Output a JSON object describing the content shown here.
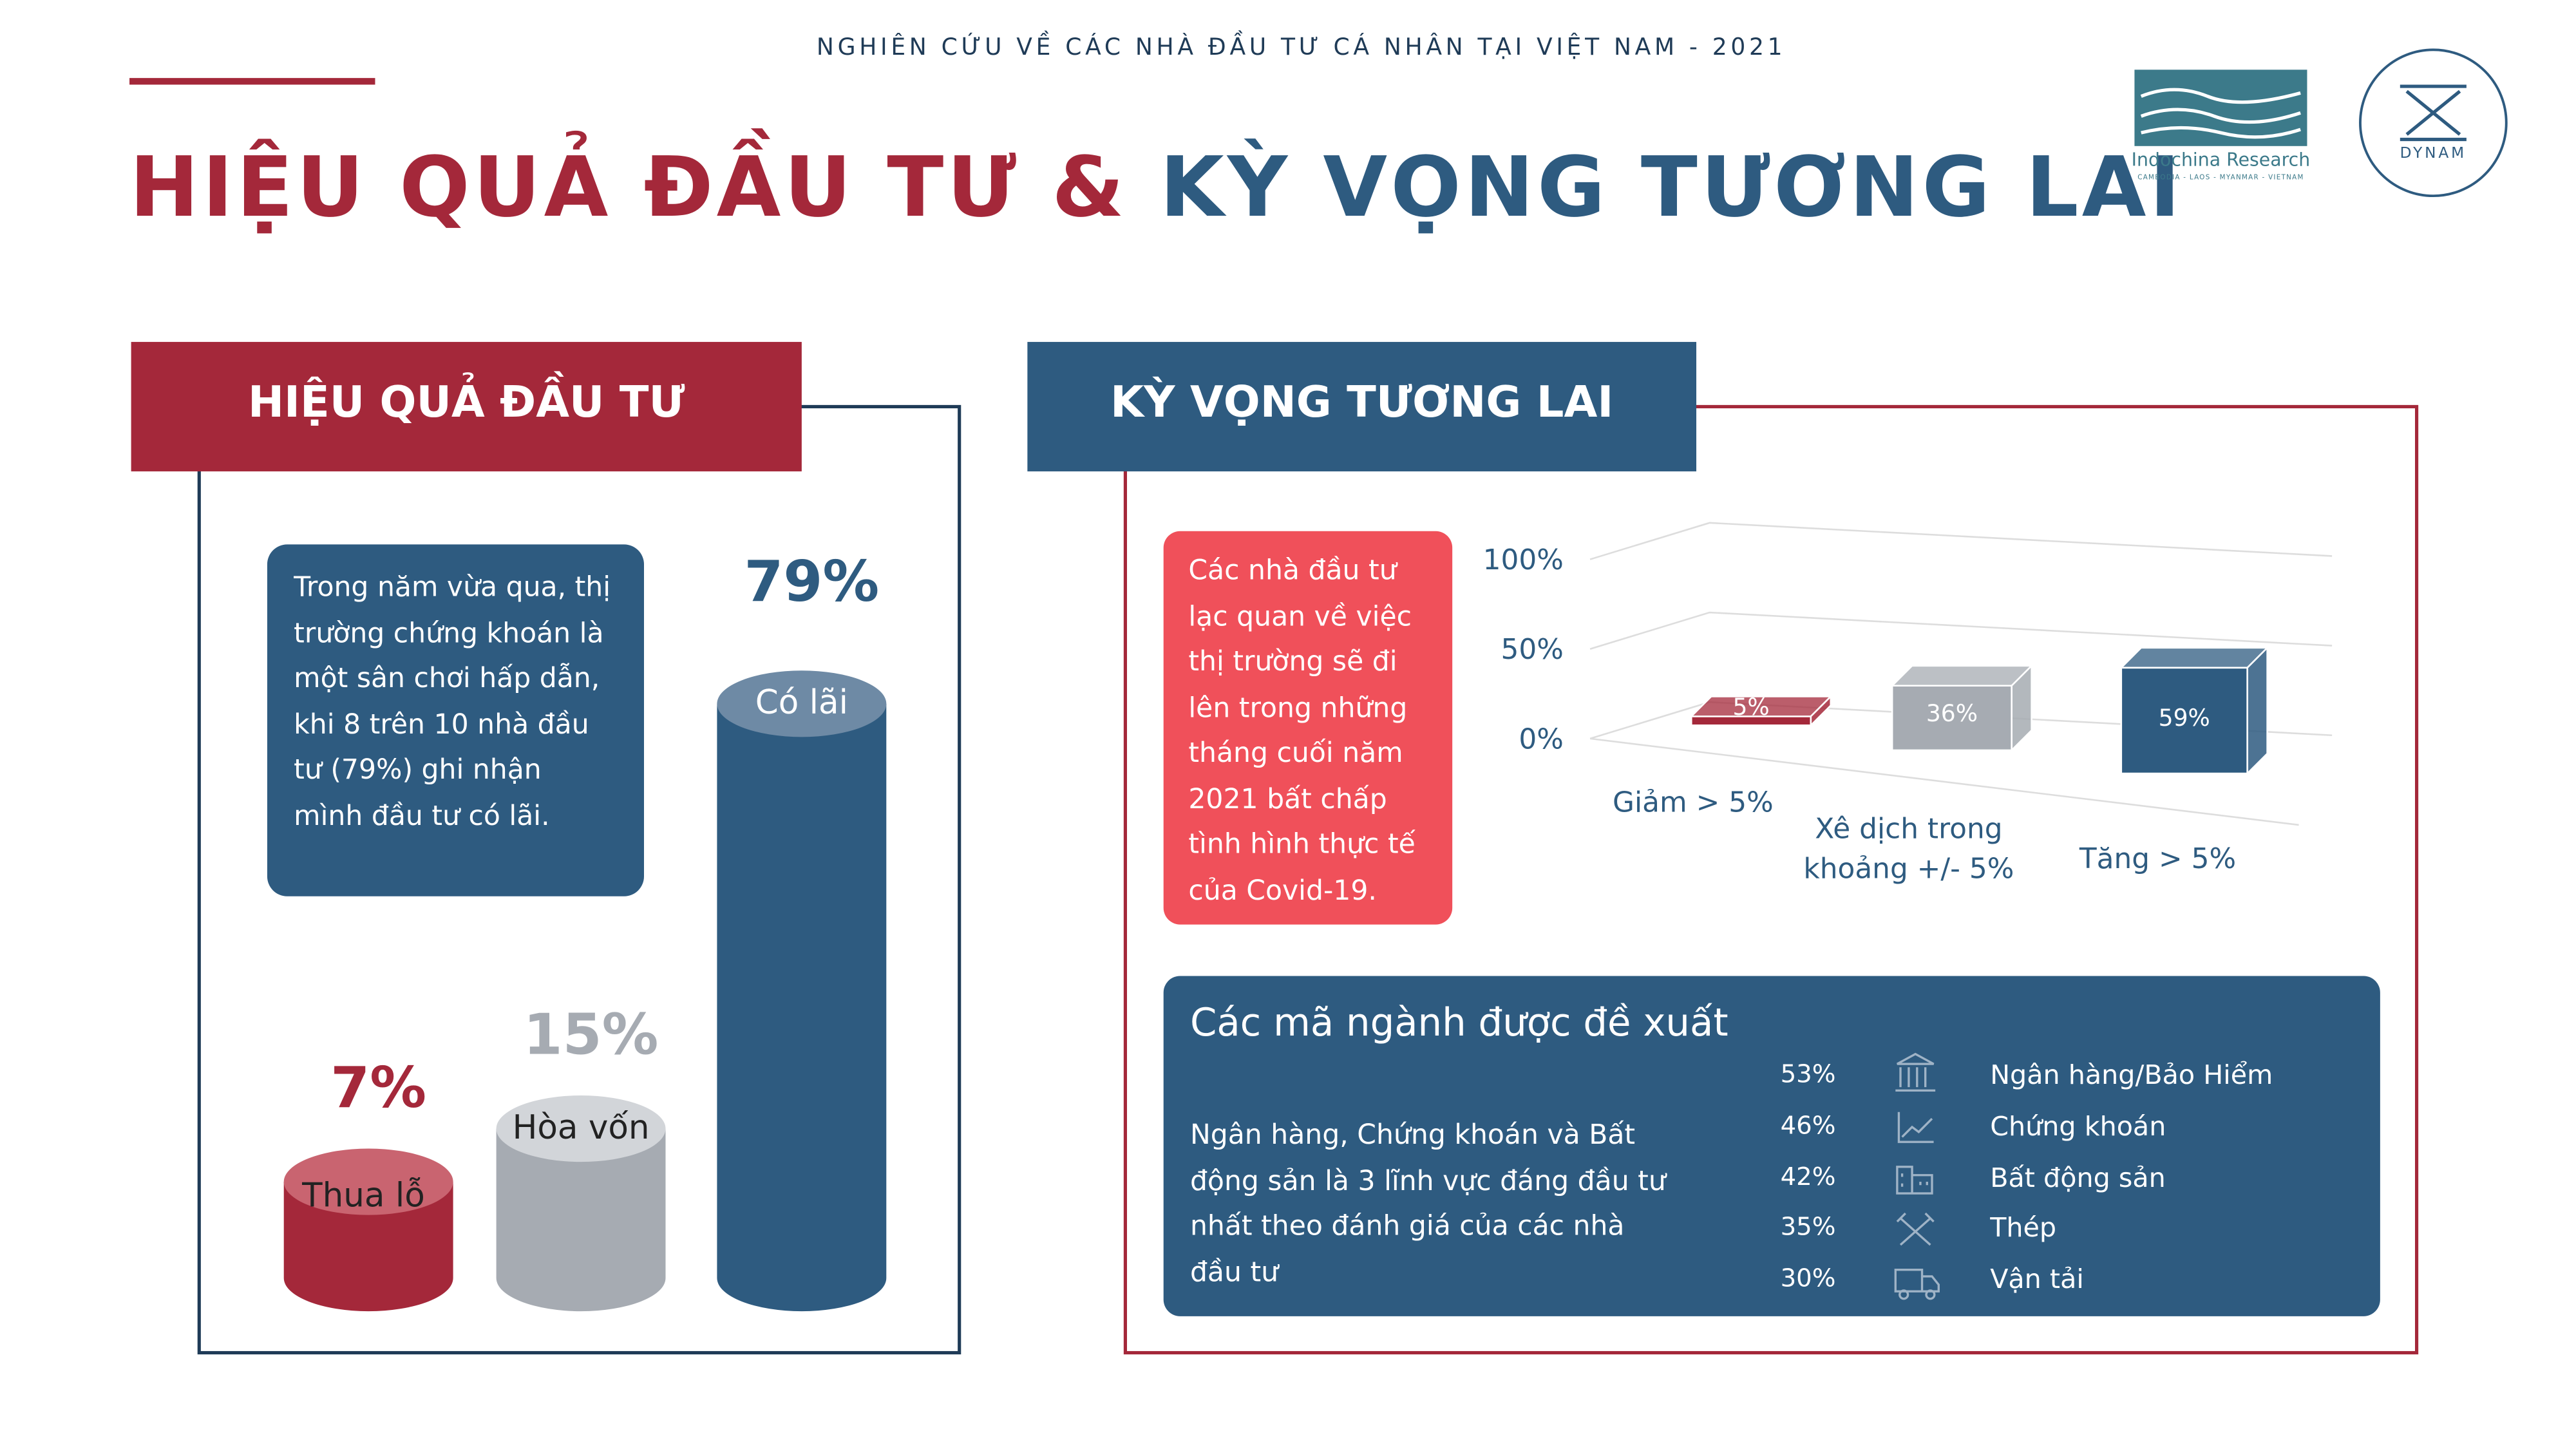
{
  "header": {
    "subtitle": "NGHIÊN CỨU VỀ CÁC NHÀ ĐẦU TƯ CÁ NHÂN TẠI VIỆT NAM - 2021",
    "title_part1": "HIỆU QUẢ ĐẦU TƯ &",
    "title_part2": "KỲ VỌNG TƯƠNG LAI",
    "logos": [
      "Indochina Research",
      "CAMBODIA - LAOS - MYANMAR - VIETNAM",
      "DYNAM"
    ]
  },
  "left": {
    "heading": "HIỆU QUẢ ĐẦU TƯ",
    "text": "Trong năm vừa qua, thị trường chứng khoán là một  sân chơi hấp dẫn, khi 8 trên 10 nhà đầu tư (79%) ghi nhận mình đầu tư có lãi."
  },
  "right": {
    "heading": "KỲ VỌNG TƯƠNG LAI",
    "text": "Các nhà đầu tư lạc quan về việc thị trường sẽ đi lên trong những tháng cuối năm 2021 bất chấp tình hình thực tế của Covid-19.",
    "sectors": {
      "title": "Các mã ngành được đề xuất",
      "text": "Ngân hàng, Chứng khoán và Bất động sản là 3 lĩnh vực đáng đầu tư nhất theo đánh giá của các nhà đầu tư",
      "rows": [
        [
          "53%",
          "Ngân hàng/Bảo Hiểm"
        ],
        [
          "46%",
          "Chứng khoán"
        ],
        [
          "42%",
          "Bất động sản"
        ],
        [
          "35%",
          "Thép"
        ],
        [
          "30%",
          "Vận tải"
        ]
      ]
    }
  },
  "chart_data": [
    {
      "type": "cylinder",
      "categories": [
        "Thua lỗ",
        "Hòa vốn",
        "Có lãi"
      ],
      "values": [
        7,
        15,
        79
      ],
      "value_labels": [
        "7%",
        "15%",
        "79%"
      ],
      "colors": [
        "#a4283a",
        "#a6abb2",
        "#2e5b80"
      ],
      "top_colors": [
        "#c96470",
        "#d2d5d9",
        "#6e8aa5"
      ]
    },
    {
      "type": "bar3d",
      "categories": [
        "Giảm > 5%",
        "Xê dịch trong khoảng +/- 5%",
        "Tăng > 5%"
      ],
      "values": [
        5,
        36,
        59
      ],
      "value_labels": [
        "5%",
        "36%",
        "59%"
      ],
      "colors": [
        "#a4283a",
        "#a6abb2",
        "#2e5b80"
      ],
      "ylim": [
        0,
        100
      ],
      "yticks": [
        {
          "value": 0,
          "label": "0%"
        },
        {
          "value": 50,
          "label": "50%"
        },
        {
          "value": 100,
          "label": "100%"
        }
      ]
    }
  ]
}
